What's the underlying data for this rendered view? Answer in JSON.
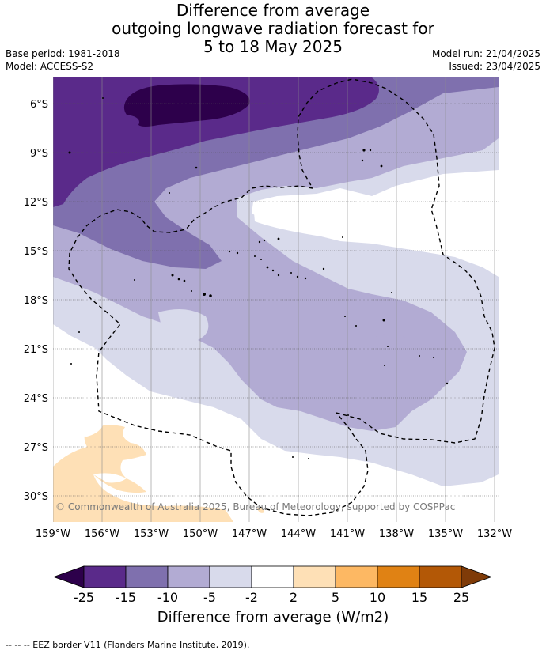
{
  "title": {
    "line1": "Difference from average",
    "line2": "outgoing longwave radiation forecast for",
    "line3": "5 to 18 May 2025"
  },
  "meta": {
    "base_period": "Base period: 1981-2018",
    "model": "Model: ACCESS-S2",
    "model_run": "Model run: 21/04/2025",
    "issued": "Issued: 23/04/2025"
  },
  "credit": "© Commonwealth of Australia 2025, Bureau of Meteorology, supported by COSPPac",
  "axes": {
    "lat_labels": [
      "6°S",
      "9°S",
      "12°S",
      "15°S",
      "18°S",
      "21°S",
      "24°S",
      "27°S",
      "30°S"
    ],
    "lon_labels": [
      "159°W",
      "156°W",
      "153°W",
      "150°W",
      "147°W",
      "144°W",
      "141°W",
      "138°W",
      "135°W",
      "132°W"
    ]
  },
  "colorbar": {
    "title": "Difference from average (W/m2)",
    "labels": [
      "-25",
      "-15",
      "-10",
      "-5",
      "-2",
      "2",
      "5",
      "10",
      "15",
      "25"
    ],
    "colors": [
      "#2d004b",
      "#5a2a8a",
      "#7f70ae",
      "#b2abd3",
      "#d8daeb",
      "#ffffff",
      "#fee0b6",
      "#fdb863",
      "#e08214",
      "#b35806",
      "#7f3b08"
    ]
  },
  "footer": "--  --  -- EEZ border V11 (Flanders Marine Institute, 2019)."
}
